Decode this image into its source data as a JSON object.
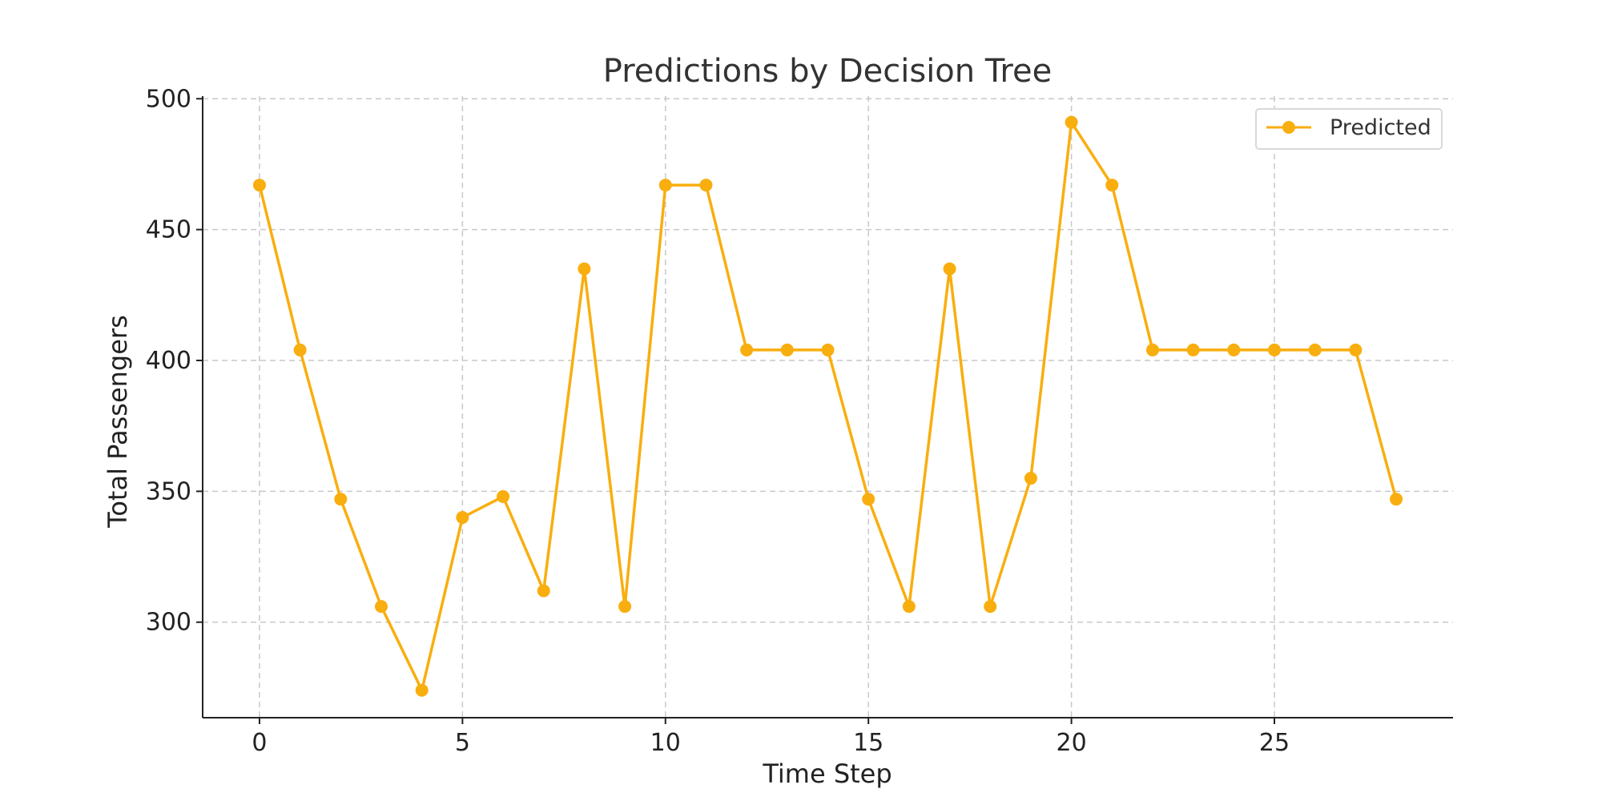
{
  "chart_data": {
    "type": "line",
    "title": "Predictions by Decision Tree",
    "xlabel": "Time Step",
    "ylabel": "Total Passengers",
    "xlim": [
      -1.4,
      29.4
    ],
    "ylim": [
      263.5,
      501
    ],
    "xticks": [
      0,
      5,
      10,
      15,
      20,
      25
    ],
    "yticks": [
      300,
      350,
      400,
      450,
      500
    ],
    "grid": true,
    "legend": "top-right",
    "series": [
      {
        "name": "Predicted",
        "color": "#F9AE0F",
        "marker": "circle",
        "x": [
          0,
          1,
          2,
          3,
          4,
          5,
          6,
          7,
          8,
          9,
          10,
          11,
          12,
          13,
          14,
          15,
          16,
          17,
          18,
          19,
          20,
          21,
          22,
          23,
          24,
          25,
          26,
          27,
          28
        ],
        "y": [
          467,
          404,
          347,
          306,
          274,
          340,
          348,
          312,
          435,
          306,
          467,
          467,
          404,
          404,
          404,
          347,
          306,
          435,
          306,
          355,
          491,
          467,
          404,
          404,
          404,
          404,
          404,
          404,
          347
        ]
      }
    ]
  }
}
